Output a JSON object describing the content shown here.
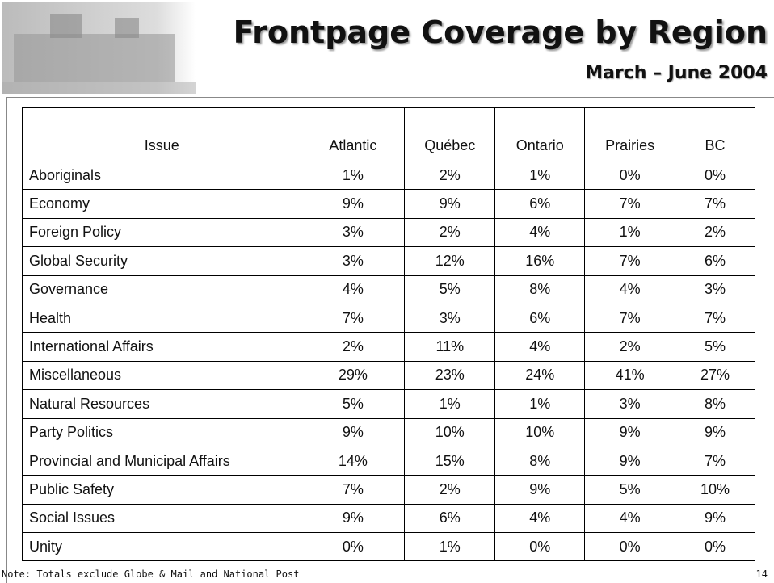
{
  "header": {
    "title": "Frontpage Coverage by Region",
    "subtitle": "March – June 2004"
  },
  "table": {
    "columns": [
      "Issue",
      "Atlantic",
      "Québec",
      "Ontario",
      "Prairies",
      "BC"
    ],
    "rows": [
      [
        "Aboriginals",
        "1%",
        "2%",
        "1%",
        "0%",
        "0%"
      ],
      [
        "Economy",
        "9%",
        "9%",
        "6%",
        "7%",
        "7%"
      ],
      [
        "Foreign Policy",
        "3%",
        "2%",
        "4%",
        "1%",
        "2%"
      ],
      [
        "Global Security",
        "3%",
        "12%",
        "16%",
        "7%",
        "6%"
      ],
      [
        "Governance",
        "4%",
        "5%",
        "8%",
        "4%",
        "3%"
      ],
      [
        "Health",
        "7%",
        "3%",
        "6%",
        "7%",
        "7%"
      ],
      [
        "International Affairs",
        "2%",
        "11%",
        "4%",
        "2%",
        "5%"
      ],
      [
        "Miscellaneous",
        "29%",
        "23%",
        "24%",
        "41%",
        "27%"
      ],
      [
        "Natural Resources",
        "5%",
        "1%",
        "1%",
        "3%",
        "8%"
      ],
      [
        "Party Politics",
        "9%",
        "10%",
        "10%",
        "9%",
        "9%"
      ],
      [
        "Provincial and Municipal Affairs",
        "14%",
        "15%",
        "8%",
        "9%",
        "7%"
      ],
      [
        "Public Safety",
        "7%",
        "2%",
        "9%",
        "5%",
        "10%"
      ],
      [
        "Social Issues",
        "9%",
        "6%",
        "4%",
        "4%",
        "9%"
      ],
      [
        "Unity",
        "0%",
        "1%",
        "0%",
        "0%",
        "0%"
      ]
    ]
  },
  "footer": {
    "note": "Note: Totals exclude Globe & Mail and National Post",
    "page": "14"
  }
}
